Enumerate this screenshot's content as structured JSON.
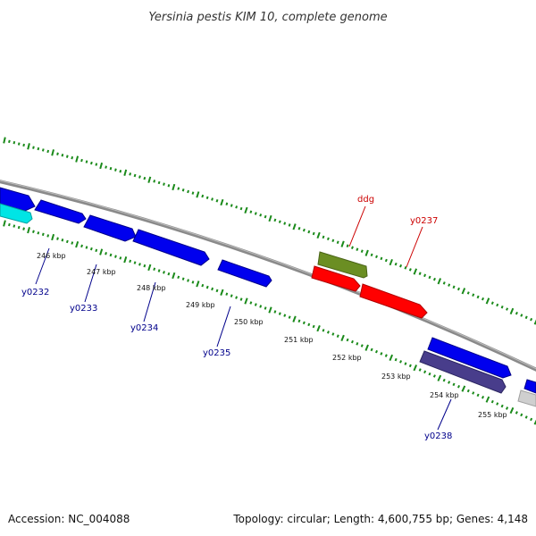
{
  "title": "Yersinia pestis KIM 10, complete genome",
  "footer": {
    "accession": "Accession: NC_004088",
    "summary": "Topology: circular; Length: 4,600,755 bp; Genes: 4,148"
  },
  "colors": {
    "backbone": "#8a8a8a",
    "tick": "#1a8a1a",
    "label_plus": "#cc0000",
    "label_minus": "#00008b",
    "blue_gene": "#0000ee",
    "cyan_gene": "#00e5e5",
    "olive_gene": "#6b8e23",
    "red_gene": "#ff0000",
    "slate_gene": "#483d8b",
    "gray_gene": "#cfcfcf"
  },
  "kbp_labels": [
    "246 kbp",
    "247 kbp",
    "248 kbp",
    "249 kbp",
    "250 kbp",
    "251 kbp",
    "252 kbp",
    "253 kbp",
    "254 kbp",
    "255 kbp"
  ],
  "gene_labels": {
    "ddg": "ddg",
    "y0237": "y0237",
    "y0232": "y0232",
    "y0233": "y0233",
    "y0234": "y0234",
    "y0235": "y0235",
    "y0238": "y0238"
  }
}
